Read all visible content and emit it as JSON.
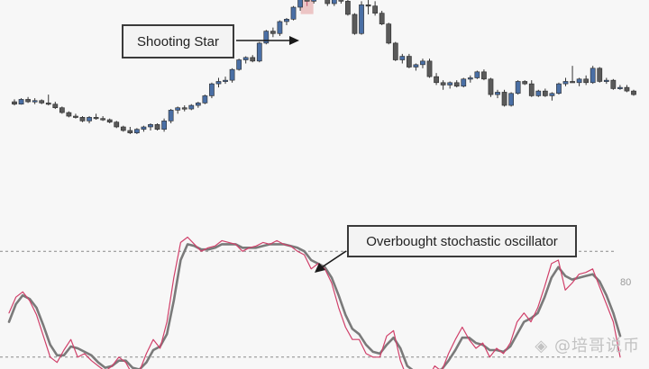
{
  "chart_data": [
    {
      "type": "candlestick",
      "title": "",
      "xlabel": "",
      "ylabel": "",
      "ylim": [
        0,
        100
      ],
      "colors": {
        "up": "#4a6fa5",
        "down": "#5a5a5a",
        "wick": "#333333",
        "highlight": "#e8b4b4"
      },
      "highlight_index": 43,
      "candles": [
        [
          62,
          63,
          60.5,
          61
        ],
        [
          61,
          63.5,
          60.8,
          63
        ],
        [
          63,
          64,
          61.5,
          62
        ],
        [
          62,
          63.5,
          61,
          62.5
        ],
        [
          62.5,
          63,
          61,
          61.5
        ],
        [
          61.5,
          65,
          60.5,
          61
        ],
        [
          61,
          62,
          59,
          59.5
        ],
        [
          59.5,
          60,
          57,
          57.5
        ],
        [
          57.5,
          58,
          55.5,
          56
        ],
        [
          56,
          57,
          55,
          55.5
        ],
        [
          55.5,
          56,
          53.5,
          54
        ],
        [
          54,
          56,
          53,
          55.5
        ],
        [
          55.5,
          57,
          54.5,
          55
        ],
        [
          55,
          56,
          54,
          54.5
        ],
        [
          54.5,
          55,
          53,
          53.5
        ],
        [
          53.5,
          54,
          51,
          51.5
        ],
        [
          51.5,
          52,
          49.5,
          50
        ],
        [
          50,
          51.5,
          48.5,
          49
        ],
        [
          49,
          51,
          48.5,
          50.5
        ],
        [
          50.5,
          52,
          49.5,
          51.5
        ],
        [
          51.5,
          53,
          50,
          52.5
        ],
        [
          52.5,
          53,
          50,
          50.5
        ],
        [
          50.5,
          55,
          49.5,
          54
        ],
        [
          54,
          59,
          53,
          58.5
        ],
        [
          58.5,
          60,
          57,
          59.5
        ],
        [
          59.5,
          60.5,
          58,
          59
        ],
        [
          59,
          61,
          58.5,
          60.5
        ],
        [
          60.5,
          62,
          59.5,
          61.5
        ],
        [
          61.5,
          65,
          61,
          64.5
        ],
        [
          64.5,
          70,
          63.5,
          69.5
        ],
        [
          69.5,
          72,
          68,
          70.5
        ],
        [
          70.5,
          72.5,
          69.5,
          71
        ],
        [
          71,
          76,
          70,
          75.5
        ],
        [
          75.5,
          80,
          75,
          79.5
        ],
        [
          79.5,
          81,
          78,
          80.5
        ],
        [
          80.5,
          81.5,
          78.5,
          79
        ],
        [
          79,
          87,
          78.5,
          86.5
        ],
        [
          86.5,
          92,
          86,
          91.5
        ],
        [
          91.5,
          93,
          89,
          90.5
        ],
        [
          90.5,
          96,
          89.5,
          95.5
        ],
        [
          95.5,
          97,
          94,
          96.5
        ],
        [
          96.5,
          102,
          96,
          101.5
        ],
        [
          101.5,
          106,
          100,
          105.5
        ],
        [
          105,
          119,
          102,
          104
        ],
        [
          104,
          107,
          103,
          106.5
        ],
        [
          106.5,
          110,
          105,
          109.5
        ],
        [
          109.5,
          110,
          102,
          103
        ],
        [
          103,
          106.5,
          102,
          106
        ],
        [
          106,
          106.5,
          103,
          104
        ],
        [
          104,
          105,
          98,
          98.5
        ],
        [
          98.5,
          99,
          90,
          90.5
        ],
        [
          90.5,
          104,
          90,
          102.5
        ],
        [
          102.5,
          104.5,
          98.5,
          102
        ],
        [
          102,
          104,
          98,
          99
        ],
        [
          99,
          100,
          94,
          94.5
        ],
        [
          94.5,
          95,
          86,
          86.5
        ],
        [
          86.5,
          87,
          79,
          79.5
        ],
        [
          79.5,
          82,
          78,
          81
        ],
        [
          81,
          82,
          76,
          76.5
        ],
        [
          76.5,
          78,
          75,
          77.5
        ],
        [
          77.5,
          80,
          76,
          79
        ],
        [
          79,
          80,
          72,
          72.5
        ],
        [
          72.5,
          74,
          69,
          70
        ],
        [
          70,
          71,
          67,
          69
        ],
        [
          69,
          70.5,
          67.5,
          70
        ],
        [
          70,
          71,
          68,
          68.5
        ],
        [
          68.5,
          72,
          68,
          71.5
        ],
        [
          71.5,
          73,
          70,
          72
        ],
        [
          72,
          75,
          71.5,
          74.5
        ],
        [
          74.5,
          75.5,
          71,
          71.5
        ],
        [
          71.5,
          72,
          64,
          65
        ],
        [
          65,
          67,
          63.5,
          66
        ],
        [
          66,
          67,
          60,
          60.5
        ],
        [
          60.5,
          66,
          60,
          65.5
        ],
        [
          65.5,
          71,
          65,
          70.5
        ],
        [
          70.5,
          71,
          69,
          69.5
        ],
        [
          69.5,
          71,
          64,
          64.5
        ],
        [
          64.5,
          67,
          64,
          66.5
        ],
        [
          66.5,
          67.5,
          64,
          64.5
        ],
        [
          64.5,
          66,
          62.5,
          65.5
        ],
        [
          65.5,
          70,
          65,
          69.5
        ],
        [
          69.5,
          72,
          68.5,
          70.5
        ],
        [
          70.5,
          77,
          70,
          70
        ],
        [
          70,
          72,
          68.5,
          71.5
        ],
        [
          71.5,
          73,
          69,
          70
        ],
        [
          70,
          77,
          69.5,
          76
        ],
        [
          76,
          76.5,
          70,
          70.5
        ],
        [
          70.5,
          72,
          69.5,
          71
        ],
        [
          71,
          71.5,
          67,
          67.5
        ],
        [
          67.5,
          69,
          67,
          68
        ],
        [
          68,
          69,
          66,
          66.5
        ],
        [
          66.5,
          67,
          64.5,
          65
        ]
      ],
      "annotations": [
        {
          "text": "Shooting Star",
          "target_index": 43
        }
      ]
    },
    {
      "type": "line",
      "title": "",
      "xlabel": "",
      "ylabel": "",
      "ylim": [
        0,
        100
      ],
      "reference_lines": [
        {
          "value": 80,
          "label": "80"
        },
        {
          "value": 20
        }
      ],
      "series": [
        {
          "color": "#d0406a",
          "values": [
            45,
            54,
            57,
            52,
            44,
            32,
            20,
            17,
            24,
            30,
            20,
            22,
            18,
            15,
            12,
            15,
            20,
            17,
            10,
            12,
            22,
            30,
            25,
            40,
            65,
            85,
            88,
            84,
            80,
            82,
            83,
            86,
            85,
            84,
            80,
            82,
            83,
            85,
            84,
            86,
            84,
            83,
            80,
            78,
            70,
            73,
            70,
            62,
            48,
            37,
            30,
            30,
            22,
            20,
            20,
            32,
            35,
            18,
            8,
            10,
            6,
            8,
            15,
            12,
            22,
            30,
            37,
            30,
            25,
            28,
            20,
            25,
            22,
            28,
            40,
            45,
            40,
            48,
            60,
            73,
            75,
            58,
            62,
            67,
            68,
            70,
            60,
            50,
            40,
            20
          ]
        },
        {
          "color": "#7a7a7a",
          "values": [
            40,
            50,
            55,
            53,
            48,
            38,
            27,
            21,
            21,
            26,
            25,
            23,
            21,
            17,
            14,
            15,
            18,
            18,
            14,
            13,
            17,
            24,
            26,
            33,
            52,
            75,
            84,
            83,
            81,
            81,
            82,
            84,
            84,
            84,
            82,
            82,
            82,
            83,
            84,
            84,
            84,
            83,
            82,
            80,
            75,
            73,
            71,
            65,
            55,
            44,
            36,
            33,
            27,
            23,
            22,
            27,
            31,
            25,
            15,
            12,
            9,
            9,
            12,
            13,
            18,
            24,
            31,
            31,
            28,
            27,
            24,
            24,
            23,
            26,
            33,
            40,
            42,
            45,
            54,
            65,
            71,
            66,
            64,
            65,
            66,
            67,
            63,
            55,
            45,
            32
          ]
        }
      ],
      "annotations": [
        {
          "text": "Overbought stochastic oscillator"
        }
      ]
    }
  ],
  "annotations": {
    "shooting_star": "Shooting Star",
    "stochastic": "Overbought stochastic oscillator"
  },
  "level_80_label": "80",
  "watermark": "◈ @培哥说币"
}
